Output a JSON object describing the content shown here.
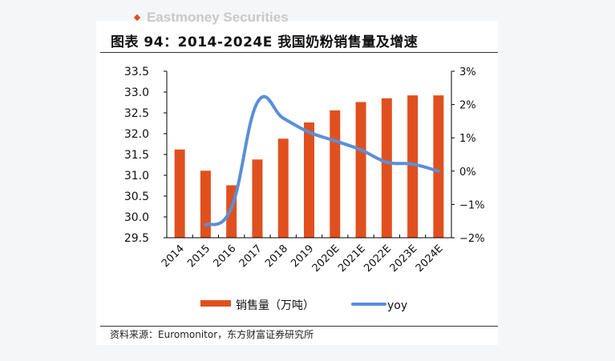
{
  "brand": "Eastmoney Securities",
  "title": "图表 94：2014-2024E 我国奶粉销售量及增速",
  "source": "资料来源：Euromonitor，东方财富证券研究所",
  "chart_data": {
    "type": "bar+line",
    "categories": [
      "2014",
      "2015",
      "2016",
      "2017",
      "2018",
      "2019",
      "2020E",
      "2021E",
      "2022E",
      "2023E",
      "2024E"
    ],
    "series": [
      {
        "name": "销售量（万吨）",
        "type": "bar",
        "axis": "left",
        "color": "#e0501f",
        "values": [
          31.62,
          31.11,
          30.76,
          31.38,
          31.88,
          32.27,
          32.56,
          32.76,
          32.85,
          32.92,
          32.92
        ]
      },
      {
        "name": "yoy",
        "type": "line",
        "axis": "right",
        "color": "#5b8fd6",
        "values": [
          null,
          -1.62,
          -1.1,
          2.06,
          1.59,
          1.17,
          0.91,
          0.64,
          0.27,
          0.21,
          0.0
        ]
      }
    ],
    "left_axis": {
      "ylim": [
        29.5,
        33.5
      ],
      "ticks": [
        "29.5",
        "30.0",
        "30.5",
        "31.0",
        "31.5",
        "32.0",
        "32.5",
        "33.0",
        "33.5"
      ]
    },
    "right_axis": {
      "ylim": [
        -2,
        3
      ],
      "unit": "%",
      "ticks": [
        "−2%",
        "−1%",
        "0%",
        "1%",
        "2%",
        "3%"
      ]
    },
    "grid": false,
    "legend_position": "bottom"
  }
}
